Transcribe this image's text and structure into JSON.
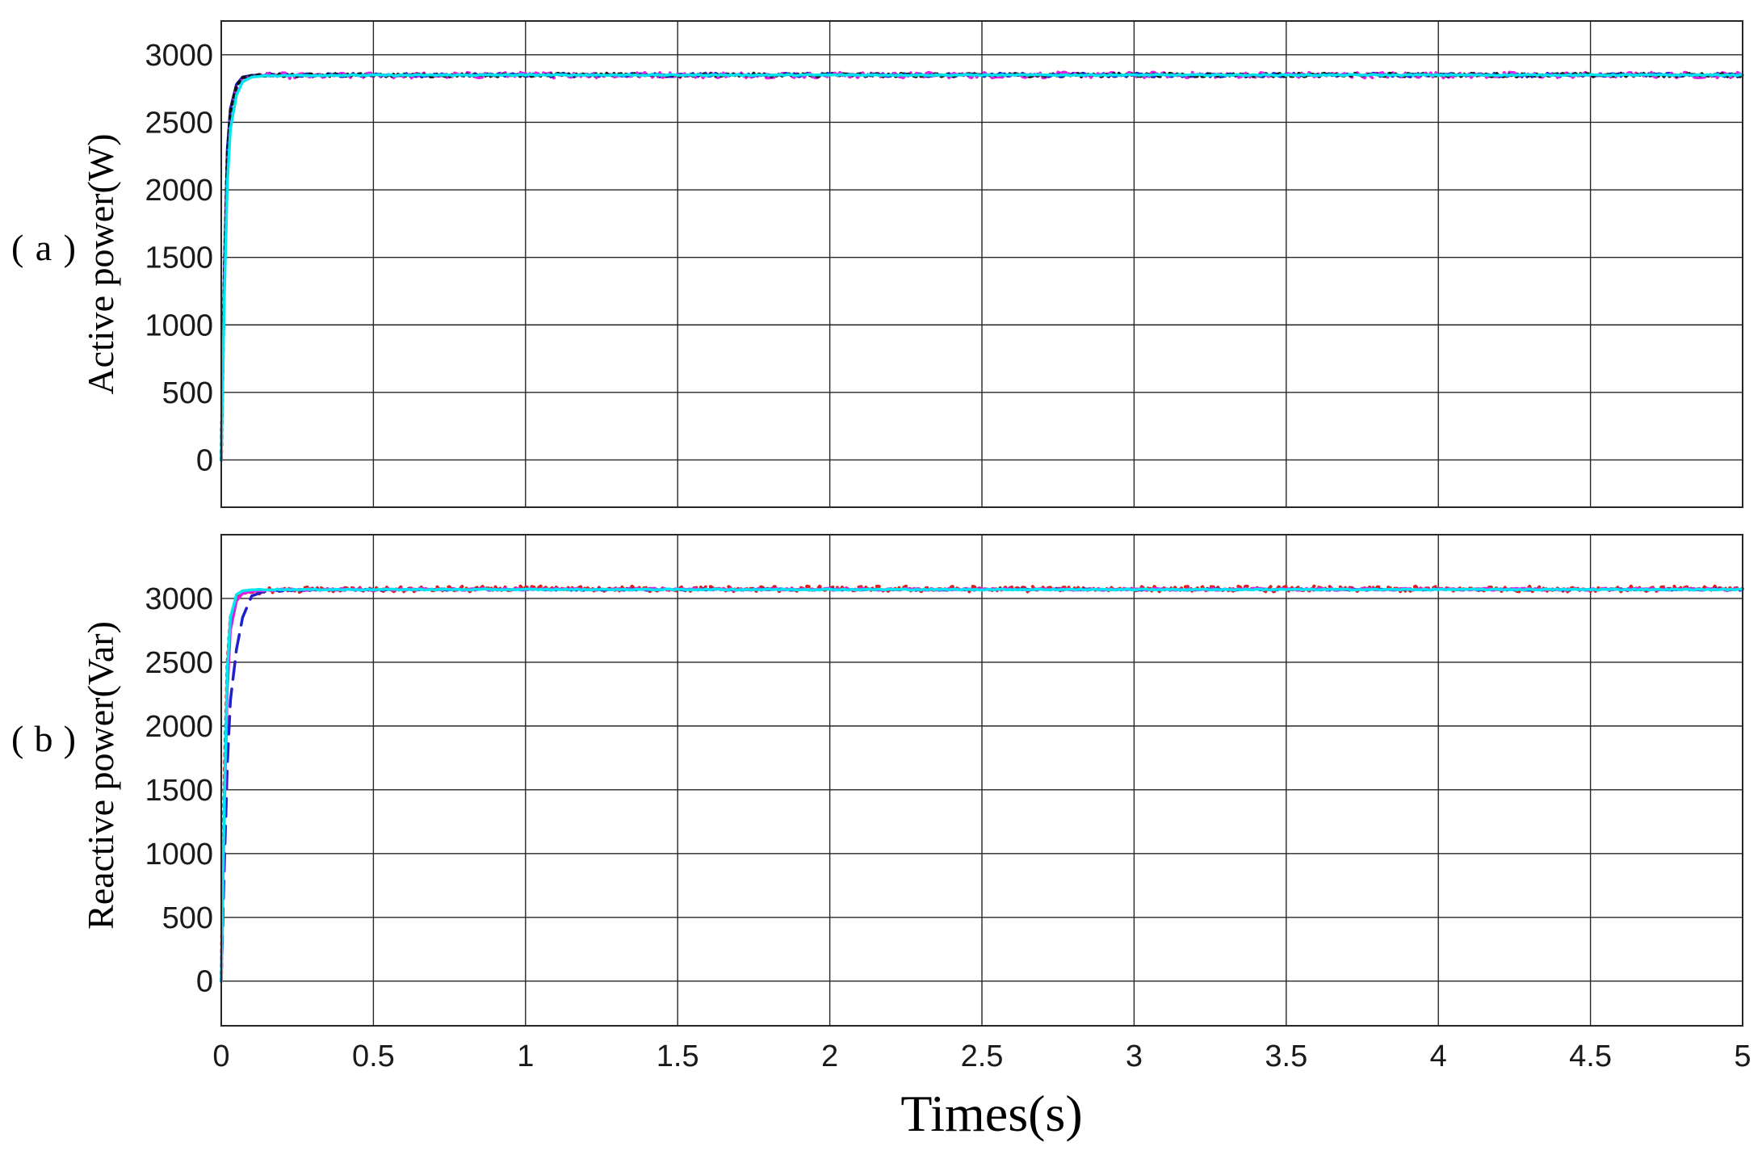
{
  "chart_data": [
    {
      "type": "line",
      "panel": "(a)",
      "ylabel": "Active power(W)",
      "xlabel": "",
      "xlim": [
        0,
        5
      ],
      "ylim": [
        -350,
        3250
      ],
      "grid": true,
      "xticks": [
        0,
        0.5,
        1,
        1.5,
        2,
        2.5,
        3,
        3.5,
        4,
        4.5,
        5
      ],
      "xtick_labels": [],
      "yticks": [
        0,
        500,
        1000,
        1500,
        2000,
        2500,
        3000
      ],
      "ytick_labels": [
        "0",
        "500",
        "1000",
        "1500",
        "2000",
        "2500",
        "3000"
      ],
      "series": [
        {
          "color": "#1f1fcf",
          "style": "solid",
          "x": [
            0,
            0.01,
            0.02,
            0.03,
            0.05,
            0.07,
            0.1,
            0.15,
            0.3,
            1,
            2,
            3,
            4,
            5
          ],
          "y": [
            0,
            1400,
            2300,
            2600,
            2780,
            2835,
            2848,
            2850,
            2848,
            2850,
            2850,
            2850,
            2850,
            2850
          ],
          "noise": 14
        },
        {
          "color": "#e020e0",
          "style": "dashdot",
          "x": [
            0,
            0.01,
            0.02,
            0.03,
            0.05,
            0.07,
            0.1,
            0.15,
            0.3,
            1,
            2,
            3,
            4,
            5
          ],
          "y": [
            0,
            1300,
            2200,
            2550,
            2750,
            2820,
            2840,
            2845,
            2845,
            2850,
            2850,
            2850,
            2850,
            2850
          ],
          "noise": 22
        },
        {
          "color": "#111111",
          "style": "dotted",
          "x": [
            0,
            0.01,
            0.02,
            0.03,
            0.05,
            0.07,
            0.1,
            0.15,
            0.3,
            1,
            2,
            3,
            4,
            5
          ],
          "y": [
            0,
            1350,
            2250,
            2580,
            2770,
            2830,
            2845,
            2848,
            2848,
            2850,
            2850,
            2850,
            2850,
            2850
          ],
          "noise": 12
        },
        {
          "color": "#00e5f0",
          "style": "solid",
          "x": [
            0,
            0.01,
            0.02,
            0.03,
            0.05,
            0.07,
            0.1,
            0.15,
            0.3,
            1,
            2,
            3,
            4,
            5
          ],
          "y": [
            0,
            1200,
            2050,
            2450,
            2700,
            2800,
            2835,
            2845,
            2848,
            2850,
            2850,
            2850,
            2850,
            2850
          ],
          "noise": 4
        }
      ]
    },
    {
      "type": "line",
      "panel": "(b)",
      "ylabel": "Reactive power(Var)",
      "xlabel": "Times(s)",
      "xlim": [
        0,
        5
      ],
      "ylim": [
        -350,
        3500
      ],
      "grid": true,
      "xticks": [
        0,
        0.5,
        1,
        1.5,
        2,
        2.5,
        3,
        3.5,
        4,
        4.5,
        5
      ],
      "xtick_labels": [
        "0",
        "0.5",
        "1",
        "1.5",
        "2",
        "2.5",
        "3",
        "3.5",
        "4",
        "4.5",
        "5"
      ],
      "yticks": [
        0,
        500,
        1000,
        1500,
        2000,
        2500,
        3000
      ],
      "ytick_labels": [
        "0",
        "500",
        "1000",
        "1500",
        "2000",
        "2500",
        "3000"
      ],
      "series": [
        {
          "color": "#e02020",
          "style": "dotted",
          "x": [
            0,
            0.01,
            0.02,
            0.03,
            0.05,
            0.07,
            0.1,
            0.15,
            0.3,
            1,
            2,
            3,
            4,
            5
          ],
          "y": [
            0,
            1600,
            2500,
            2850,
            3000,
            3040,
            3050,
            3060,
            3070,
            3075,
            3075,
            3075,
            3075,
            3075
          ],
          "noise": 22
        },
        {
          "color": "#1f1fcf",
          "style": "dashed",
          "x": [
            0,
            0.01,
            0.02,
            0.03,
            0.05,
            0.07,
            0.1,
            0.15,
            0.3,
            1,
            2,
            3,
            4,
            5
          ],
          "y": [
            0,
            900,
            1700,
            2200,
            2600,
            2850,
            3020,
            3060,
            3068,
            3070,
            3070,
            3070,
            3070,
            3070
          ],
          "noise": 6
        },
        {
          "color": "#e020e0",
          "style": "solid",
          "x": [
            0,
            0.01,
            0.02,
            0.03,
            0.05,
            0.07,
            0.1,
            0.15,
            0.3,
            1,
            2,
            3,
            4,
            5
          ],
          "y": [
            0,
            1300,
            2300,
            2750,
            2980,
            3040,
            3055,
            3065,
            3070,
            3072,
            3072,
            3072,
            3072,
            3072
          ],
          "noise": 8
        },
        {
          "color": "#00e5f0",
          "style": "solid",
          "x": [
            0,
            0.01,
            0.02,
            0.03,
            0.05,
            0.07,
            0.1,
            0.15,
            0.3,
            1,
            2,
            3,
            4,
            5
          ],
          "y": [
            0,
            1400,
            2450,
            2850,
            3030,
            3060,
            3068,
            3070,
            3070,
            3070,
            3070,
            3070,
            3070,
            3070
          ],
          "noise": 4
        }
      ]
    }
  ]
}
